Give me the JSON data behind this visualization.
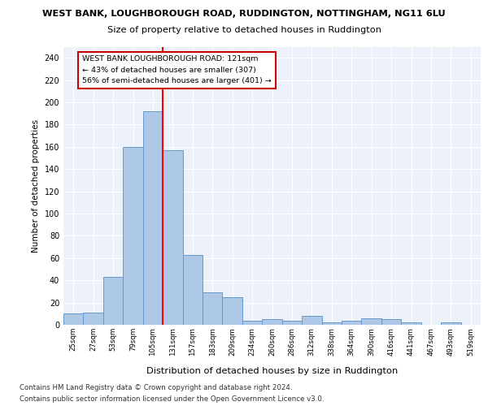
{
  "title1": "WEST BANK, LOUGHBOROUGH ROAD, RUDDINGTON, NOTTINGHAM, NG11 6LU",
  "title2": "Size of property relative to detached houses in Ruddington",
  "xlabel": "Distribution of detached houses by size in Ruddington",
  "ylabel": "Number of detached properties",
  "footer1": "Contains HM Land Registry data © Crown copyright and database right 2024.",
  "footer2": "Contains public sector information licensed under the Open Government Licence v3.0.",
  "bin_labels": [
    "25sqm",
    "27sqm",
    "53sqm",
    "79sqm",
    "105sqm",
    "131sqm",
    "157sqm",
    "183sqm",
    "209sqm",
    "234sqm",
    "260sqm",
    "286sqm",
    "312sqm",
    "338sqm",
    "364sqm",
    "390sqm",
    "416sqm",
    "441sqm",
    "467sqm",
    "493sqm",
    "519sqm"
  ],
  "bar_values": [
    10,
    11,
    43,
    160,
    192,
    157,
    63,
    29,
    25,
    4,
    5,
    4,
    8,
    2,
    4,
    6,
    5,
    2,
    0,
    2,
    0
  ],
  "bar_color": "#adc8e6",
  "bar_edge_color": "#6699cc",
  "reference_line_x": 4.5,
  "annotation_line1": "WEST BANK LOUGHBOROUGH ROAD: 121sqm",
  "annotation_line2": "← 43% of detached houses are smaller (307)",
  "annotation_line3": "56% of semi-detached houses are larger (401) →",
  "annotation_box_facecolor": "#ffffff",
  "annotation_box_edgecolor": "#cc0000",
  "ylim": [
    0,
    250
  ],
  "yticks": [
    0,
    20,
    40,
    60,
    80,
    100,
    120,
    140,
    160,
    180,
    200,
    220,
    240
  ],
  "plot_bg_color": "#edf2fa",
  "grid_color": "#ffffff"
}
